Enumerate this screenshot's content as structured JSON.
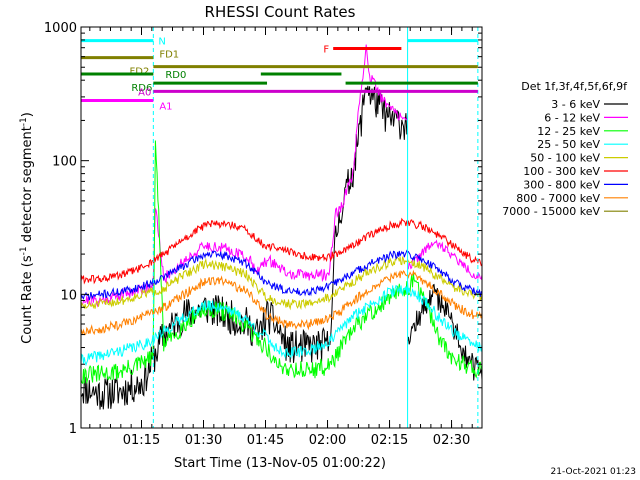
{
  "chart_data": {
    "type": "line",
    "title": "RHESSI Count Rates",
    "xlabel": "Start Time (13-Nov-05 01:00:22)",
    "ylabel_main": "Count Rate (s",
    "ylabel_sup1": "-1",
    "ylabel_mid": " detector segment",
    "ylabel_sup2": "-1",
    "ylabel_end": ")",
    "footer_date": "21-Oct-2021 01:23",
    "x_unit": "minutes after 01:00:22",
    "xlim": [
      0,
      97
    ],
    "ylim": [
      1,
      1000
    ],
    "y_scale": "log",
    "grid": false,
    "x_major_ticks": [
      "01:15",
      "01:30",
      "01:45",
      "02:00",
      "02:15",
      "02:30"
    ],
    "y_major_ticks": [
      "1",
      "10",
      "100",
      "1000"
    ],
    "legend": {
      "placement": "right",
      "header": "Det 1f,3f,4f,5f,6f,9f",
      "entries": [
        {
          "label": "3 - 6 keV",
          "color": "#000000"
        },
        {
          "label": "6 - 12 keV",
          "color": "#ff00ff"
        },
        {
          "label": "12 - 25 keV",
          "color": "#00ff00"
        },
        {
          "label": "25 - 50 keV",
          "color": "#00ffff"
        },
        {
          "label": "50 - 100 keV",
          "color": "#cccc00"
        },
        {
          "label": "100 - 300 keV",
          "color": "#ff0000"
        },
        {
          "label": "300 - 800 keV",
          "color": "#0000ff"
        },
        {
          "label": "800 - 7000 keV",
          "color": "#ff8000"
        },
        {
          "label": "7000 - 15000 keV",
          "color": "#808000"
        }
      ]
    },
    "series": [
      {
        "name": "3 - 6 keV",
        "color": "#000000",
        "noise": 0.3,
        "seed": 11,
        "x": [
          0,
          5,
          10,
          15,
          20,
          25,
          30,
          35,
          40,
          43,
          45,
          47,
          50,
          55,
          60,
          61,
          61.5,
          63,
          66,
          68,
          69,
          70,
          72,
          74,
          76,
          78,
          79
        ],
        "y": [
          2.0,
          1.8,
          1.9,
          2.2,
          5,
          7,
          8,
          7,
          6,
          5,
          7,
          6,
          4,
          4,
          4.2,
          12,
          25,
          45,
          90,
          220,
          400,
          310,
          260,
          210,
          200,
          190,
          185
        ]
      },
      {
        "name": "3 - 6 keV",
        "color": "#000000",
        "noise": 0.22,
        "seed": 12,
        "x": [
          79,
          81,
          83,
          85,
          87,
          89,
          91,
          93,
          95,
          97
        ],
        "y": [
          5,
          6,
          8,
          10,
          9,
          7,
          5,
          3.5,
          2.8,
          2.6
        ]
      },
      {
        "name": "6 - 12 keV",
        "color": "#ff00ff",
        "noise": 0.1,
        "seed": 21,
        "x": [
          0,
          5,
          10,
          15,
          17.5,
          18,
          20,
          25,
          30,
          35,
          40,
          43,
          45,
          47,
          50,
          55,
          60,
          61,
          61.5,
          63,
          66,
          67,
          68,
          69,
          70,
          72,
          74,
          76,
          78,
          79
        ],
        "y": [
          9,
          9,
          10,
          11,
          12,
          45,
          13,
          18,
          23,
          22,
          19,
          15,
          18,
          17,
          14,
          14,
          14,
          28,
          40,
          45,
          85,
          210,
          380,
          700,
          420,
          320,
          260,
          230,
          210,
          200
        ]
      },
      {
        "name": "6 - 12 keV",
        "color": "#ff00ff",
        "noise": 0.08,
        "seed": 22,
        "x": [
          79,
          81,
          83,
          85,
          87,
          89,
          91,
          93,
          95,
          97
        ],
        "y": [
          16,
          18,
          21,
          24,
          23,
          21,
          18,
          16,
          14,
          13
        ]
      },
      {
        "name": "12 - 25 keV",
        "color": "#00ff00",
        "noise": 0.16,
        "seed": 31,
        "x": [
          0,
          4,
          8,
          12,
          16,
          17.5,
          18,
          20,
          24,
          28,
          32,
          36,
          40,
          43,
          45,
          47,
          50,
          55,
          60,
          64,
          68,
          72,
          76,
          79,
          81,
          83,
          85,
          87,
          89,
          91,
          93,
          95,
          97
        ],
        "y": [
          2.5,
          2.5,
          2.6,
          2.8,
          3.2,
          3.4,
          160,
          4.2,
          5.5,
          7.2,
          7.8,
          7.2,
          5.6,
          4.5,
          4.0,
          3.0,
          2.8,
          2.7,
          2.9,
          4.5,
          6.5,
          8,
          10,
          11.5,
          12.5,
          9,
          6.5,
          4.5,
          3.5,
          3.2,
          3.0,
          2.8,
          2.7
        ]
      },
      {
        "name": "25 - 50 keV",
        "color": "#00ffff",
        "noise": 0.1,
        "seed": 41,
        "x": [
          0,
          5,
          10,
          15,
          20,
          25,
          30,
          35,
          40,
          43,
          45,
          47,
          50,
          55,
          60,
          65,
          70,
          75,
          79,
          83,
          87,
          91,
          95,
          97
        ],
        "y": [
          3.2,
          3.5,
          3.8,
          4.2,
          5.2,
          6.8,
          8.2,
          8.0,
          6.5,
          5.2,
          4.8,
          4.0,
          3.6,
          3.8,
          4.4,
          6.5,
          8.5,
          10.5,
          11,
          9,
          6.5,
          5.0,
          4.2,
          4.0
        ]
      },
      {
        "name": "50 - 100 keV",
        "color": "#cccc00",
        "noise": 0.08,
        "seed": 51,
        "x": [
          0,
          5,
          10,
          15,
          20,
          25,
          30,
          35,
          40,
          43,
          45,
          47,
          50,
          55,
          60,
          65,
          70,
          75,
          79,
          83,
          87,
          91,
          95,
          97
        ],
        "y": [
          8,
          8.5,
          9,
          10,
          11,
          14,
          17,
          16,
          14,
          11,
          9.5,
          9,
          8.5,
          8.5,
          9.5,
          12,
          15,
          17.5,
          18,
          16,
          13,
          11,
          10,
          9.5
        ]
      },
      {
        "name": "100 - 300 keV",
        "color": "#ff0000",
        "noise": 0.07,
        "seed": 61,
        "x": [
          0,
          5,
          10,
          15,
          20,
          25,
          30,
          35,
          40,
          43,
          45,
          47,
          50,
          55,
          60,
          65,
          70,
          75,
          79,
          83,
          87,
          91,
          95,
          97
        ],
        "y": [
          13,
          13,
          14,
          16,
          20,
          26,
          33,
          34,
          30,
          25,
          22,
          23,
          21,
          19,
          19,
          22,
          28,
          33,
          35,
          32,
          27,
          22,
          18,
          17
        ]
      },
      {
        "name": "300 - 800 keV",
        "color": "#0000ff",
        "noise": 0.07,
        "seed": 71,
        "x": [
          0,
          5,
          10,
          15,
          20,
          25,
          30,
          35,
          40,
          43,
          45,
          47,
          50,
          55,
          60,
          65,
          70,
          75,
          79,
          83,
          87,
          91,
          95,
          97
        ],
        "y": [
          9.5,
          10,
          10.5,
          11.5,
          13.5,
          16.5,
          20,
          19.5,
          17,
          14,
          12,
          11.5,
          10.5,
          10.5,
          11.5,
          14,
          17,
          19.5,
          20,
          18,
          15,
          12,
          10.5,
          10
        ]
      },
      {
        "name": "800 - 7000 keV",
        "color": "#ff8000",
        "noise": 0.08,
        "seed": 81,
        "x": [
          0,
          5,
          10,
          15,
          20,
          25,
          30,
          35,
          40,
          43,
          45,
          47,
          50,
          55,
          60,
          65,
          70,
          75,
          79,
          83,
          87,
          91,
          95,
          97
        ],
        "y": [
          5.2,
          5.5,
          6,
          6.8,
          8,
          10,
          12.5,
          12.5,
          10.5,
          8.5,
          7,
          6.5,
          6,
          6,
          6.5,
          8.5,
          11,
          13.5,
          14.5,
          12.5,
          10,
          8,
          7,
          6.8
        ]
      }
    ],
    "vertical_lines": [
      {
        "x": 17.5,
        "color": "#00ffff",
        "style": "dashed"
      },
      {
        "x": 79,
        "color": "#00ffff",
        "style": "solid"
      },
      {
        "x": 96,
        "color": "#00ffff",
        "style": "dashed"
      }
    ],
    "flag_bars": [
      {
        "label": "N",
        "color": "#00ffff",
        "rate": 790,
        "segments": [
          [
            0,
            17.5
          ],
          [
            79,
            96
          ]
        ]
      },
      {
        "label": "FD1",
        "color": "#808000",
        "rate": 590,
        "segments": [
          [
            0,
            17.5
          ]
        ]
      },
      {
        "label": "FD2",
        "color": "#808000",
        "rate": 505,
        "segments": [
          [
            17.5,
            96
          ]
        ]
      },
      {
        "label": "RD0",
        "color": "#008000",
        "rate": 445,
        "segments": [
          [
            0,
            17.5
          ],
          [
            43.5,
            63
          ]
        ]
      },
      {
        "label": "RD6",
        "color": "#008000",
        "rate": 380,
        "segments": [
          [
            17.5,
            45
          ],
          [
            64,
            96
          ]
        ]
      },
      {
        "label": "A0",
        "color": "#cc00cc",
        "rate": 330,
        "segments": [
          [
            17.5,
            96
          ]
        ]
      },
      {
        "label": "A1",
        "color": "#ff00ff",
        "rate": 282,
        "segments": [
          [
            0,
            17.5
          ]
        ]
      },
      {
        "label": "F",
        "color": "#ff0000",
        "rate": 690,
        "segments": [
          [
            61,
            77.5
          ]
        ]
      }
    ]
  }
}
